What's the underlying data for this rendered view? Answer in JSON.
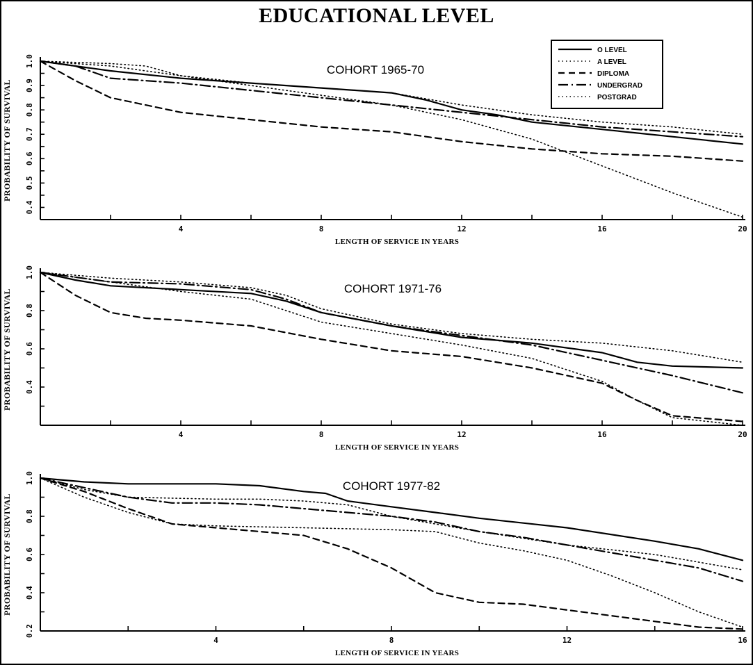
{
  "figure": {
    "title": "EDUCATIONAL LEVEL",
    "legend": {
      "entries": [
        "O LEVEL",
        "A LEVEL",
        "DIPLOMA",
        "UNDERGRAD",
        "POSTGRAD"
      ],
      "placement": "top-right of first panel"
    }
  },
  "chart_data": [
    {
      "type": "line",
      "title": "COHORT 1965-70",
      "xlabel": "LENGTH OF SERVICE IN YEARS",
      "ylabel": "PROBABILITY OF SURVIVAL",
      "xlim": [
        0,
        20
      ],
      "ylim": [
        0.35,
        1.0
      ],
      "xticks": [
        4,
        8,
        12,
        16,
        20
      ],
      "yticks": [
        0.4,
        0.5,
        0.6,
        0.7,
        0.8,
        0.9,
        1.0
      ],
      "ytick_labels": [
        "0.4",
        "0.5",
        "0.6",
        "0.7",
        "0.8",
        "0.9",
        "1.0"
      ],
      "grid": false,
      "series": [
        {
          "name": "O LEVEL",
          "style": "solid",
          "x": [
            0,
            2,
            4,
            6,
            8,
            10,
            11,
            12,
            13,
            14,
            16,
            18,
            20
          ],
          "y": [
            1.0,
            0.96,
            0.93,
            0.91,
            0.89,
            0.87,
            0.84,
            0.8,
            0.78,
            0.75,
            0.72,
            0.69,
            0.66
          ]
        },
        {
          "name": "A LEVEL",
          "style": "dotted",
          "x": [
            0,
            2,
            4,
            6,
            8,
            10,
            12,
            14,
            16,
            18,
            20
          ],
          "y": [
            1.0,
            0.98,
            0.94,
            0.91,
            0.89,
            0.87,
            0.82,
            0.78,
            0.75,
            0.73,
            0.7
          ]
        },
        {
          "name": "DIPLOMA",
          "style": "dashed",
          "x": [
            0,
            1,
            2,
            3,
            4,
            6,
            8,
            10,
            12,
            14,
            16,
            18,
            20
          ],
          "y": [
            1.0,
            0.92,
            0.85,
            0.82,
            0.79,
            0.76,
            0.73,
            0.71,
            0.67,
            0.64,
            0.62,
            0.61,
            0.59
          ]
        },
        {
          "name": "UNDERGRAD",
          "style": "dashdot",
          "x": [
            0,
            1,
            2,
            4,
            6,
            8,
            10,
            12,
            14,
            16,
            18,
            20
          ],
          "y": [
            1.0,
            0.98,
            0.93,
            0.91,
            0.88,
            0.85,
            0.82,
            0.79,
            0.76,
            0.73,
            0.71,
            0.69
          ]
        },
        {
          "name": "POSTGRAD",
          "style": "dotted",
          "x": [
            0,
            2,
            3,
            4,
            6,
            8,
            10,
            12,
            14,
            16,
            18,
            20
          ],
          "y": [
            1.0,
            0.99,
            0.98,
            0.94,
            0.9,
            0.86,
            0.82,
            0.76,
            0.68,
            0.57,
            0.46,
            0.36
          ]
        }
      ]
    },
    {
      "type": "line",
      "title": "COHORT 1971-76",
      "xlabel": "LENGTH OF SERVICE IN YEARS",
      "ylabel": "PROBABILITY OF SURVIVAL",
      "xlim": [
        0,
        20
      ],
      "ylim": [
        0.2,
        1.0
      ],
      "xticks": [
        4,
        8,
        12,
        16,
        20
      ],
      "yticks": [
        0.4,
        0.6,
        0.8,
        1.0
      ],
      "ytick_labels": [
        "0.4",
        "0.6",
        "0.8",
        "1.0"
      ],
      "grid": false,
      "series": [
        {
          "name": "O LEVEL",
          "style": "solid",
          "x": [
            0,
            1,
            2,
            4,
            6,
            7,
            8,
            10,
            12,
            14,
            16,
            17,
            18,
            20
          ],
          "y": [
            1.0,
            0.96,
            0.93,
            0.91,
            0.89,
            0.85,
            0.79,
            0.72,
            0.66,
            0.63,
            0.58,
            0.53,
            0.51,
            0.5
          ]
        },
        {
          "name": "A LEVEL",
          "style": "dotted",
          "x": [
            0,
            2,
            4,
            6,
            7,
            8,
            10,
            12,
            14,
            16,
            18,
            20
          ],
          "y": [
            1.0,
            0.97,
            0.95,
            0.92,
            0.88,
            0.81,
            0.73,
            0.68,
            0.65,
            0.63,
            0.59,
            0.53
          ]
        },
        {
          "name": "DIPLOMA",
          "style": "dashed",
          "x": [
            0,
            1,
            2,
            3,
            4,
            6,
            8,
            10,
            12,
            14,
            16,
            17,
            18,
            20
          ],
          "y": [
            1.0,
            0.88,
            0.79,
            0.76,
            0.75,
            0.72,
            0.65,
            0.59,
            0.56,
            0.5,
            0.42,
            0.33,
            0.25,
            0.22
          ]
        },
        {
          "name": "UNDERGRAD",
          "style": "dashdot",
          "x": [
            0,
            2,
            4,
            6,
            7,
            8,
            10,
            12,
            14,
            16,
            18,
            20
          ],
          "y": [
            1.0,
            0.95,
            0.94,
            0.91,
            0.86,
            0.79,
            0.72,
            0.67,
            0.62,
            0.54,
            0.46,
            0.37
          ]
        },
        {
          "name": "POSTGRAD",
          "style": "dotted",
          "x": [
            0,
            2,
            4,
            6,
            8,
            10,
            12,
            14,
            16,
            17,
            18,
            20
          ],
          "y": [
            1.0,
            0.95,
            0.9,
            0.86,
            0.74,
            0.68,
            0.62,
            0.55,
            0.43,
            0.33,
            0.24,
            0.2
          ]
        }
      ]
    },
    {
      "type": "line",
      "title": "COHORT 1977-82",
      "xlabel": "LENGTH OF SERVICE IN YEARS",
      "ylabel": "PROBABILITY OF SURVIVAL",
      "xlim": [
        0,
        16
      ],
      "ylim": [
        0.2,
        1.0
      ],
      "xticks": [
        4,
        8,
        12,
        16
      ],
      "yticks": [
        0.2,
        0.4,
        0.6,
        0.8,
        1.0
      ],
      "ytick_labels": [
        "0.2",
        "0.4",
        "0.6",
        "0.8",
        "1.0"
      ],
      "grid": false,
      "series": [
        {
          "name": "O LEVEL",
          "style": "solid",
          "x": [
            0,
            1,
            2,
            4,
            5,
            6,
            6.5,
            7,
            8,
            9,
            10,
            12,
            14,
            15,
            16
          ],
          "y": [
            1.0,
            0.98,
            0.97,
            0.97,
            0.96,
            0.93,
            0.92,
            0.88,
            0.85,
            0.82,
            0.79,
            0.74,
            0.67,
            0.63,
            0.57
          ]
        },
        {
          "name": "A LEVEL",
          "style": "dotted",
          "x": [
            0,
            1,
            2,
            4,
            5,
            6,
            7,
            8,
            10,
            12,
            14,
            15,
            16
          ],
          "y": [
            1.0,
            0.94,
            0.9,
            0.89,
            0.89,
            0.88,
            0.86,
            0.8,
            0.72,
            0.65,
            0.6,
            0.56,
            0.52
          ]
        },
        {
          "name": "DIPLOMA",
          "style": "dashed",
          "x": [
            0,
            1,
            2,
            3,
            4,
            5,
            6,
            7,
            8,
            9,
            10,
            11,
            12,
            13,
            14,
            15,
            16
          ],
          "y": [
            1.0,
            0.93,
            0.84,
            0.76,
            0.74,
            0.72,
            0.7,
            0.63,
            0.53,
            0.4,
            0.35,
            0.34,
            0.31,
            0.28,
            0.25,
            0.22,
            0.21
          ]
        },
        {
          "name": "UNDERGRAD",
          "style": "dashdot",
          "x": [
            0,
            1,
            2,
            3,
            4,
            5,
            6,
            7,
            8,
            9,
            10,
            11,
            12,
            13,
            14,
            15,
            16
          ],
          "y": [
            1.0,
            0.95,
            0.9,
            0.87,
            0.87,
            0.86,
            0.84,
            0.82,
            0.8,
            0.77,
            0.72,
            0.69,
            0.65,
            0.61,
            0.57,
            0.53,
            0.46
          ]
        },
        {
          "name": "POSTGRAD",
          "style": "dotted",
          "x": [
            0,
            1,
            2,
            3,
            4,
            6,
            8,
            9,
            10,
            11,
            12,
            13,
            14,
            15,
            16
          ],
          "y": [
            1.0,
            0.9,
            0.82,
            0.76,
            0.75,
            0.74,
            0.73,
            0.72,
            0.66,
            0.62,
            0.57,
            0.49,
            0.4,
            0.3,
            0.22
          ]
        }
      ]
    }
  ]
}
